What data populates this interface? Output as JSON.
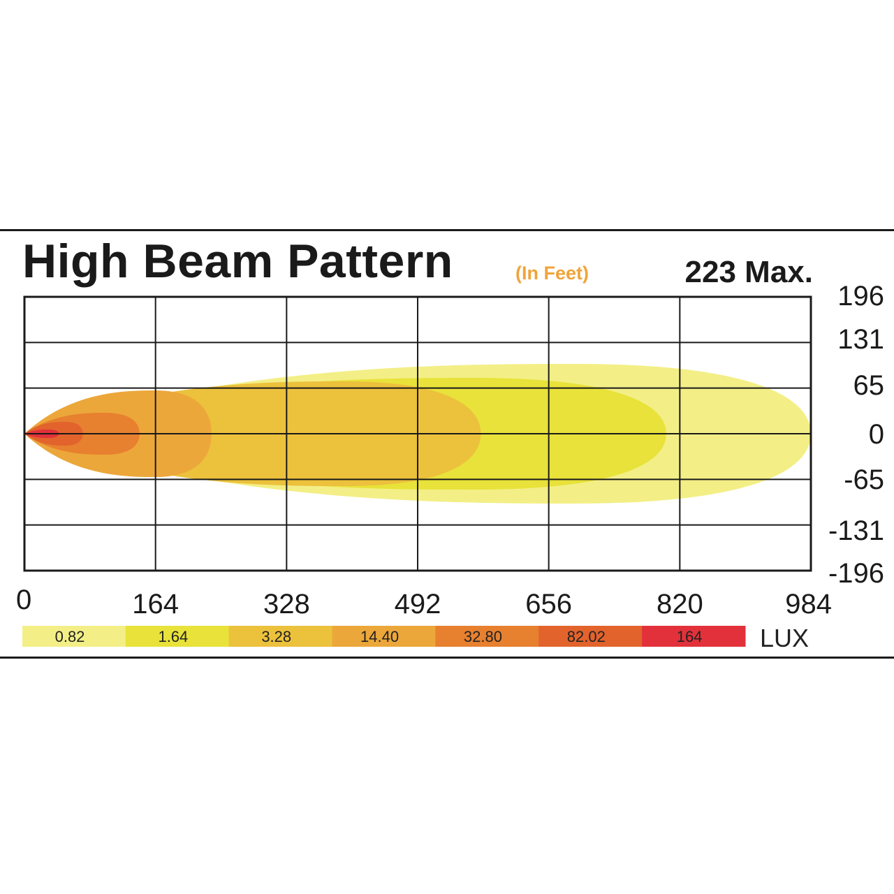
{
  "chart_data": {
    "type": "heatmap",
    "title": "High Beam Pattern",
    "subtitle": "(In Feet)",
    "max_label": "223 Max.",
    "x_ticks": [
      "0",
      "164",
      "328",
      "492",
      "656",
      "820",
      "984"
    ],
    "y_ticks": [
      "196",
      "131",
      "65",
      "0",
      "-65",
      "-131",
      "-196"
    ],
    "xlim": [
      0,
      984
    ],
    "ylim": [
      -196,
      196
    ],
    "grid": true,
    "legend_unit": "LUX",
    "legend": [
      {
        "label": "0.82",
        "color": "#f3ef86"
      },
      {
        "label": "1.64",
        "color": "#e8e23a"
      },
      {
        "label": "3.28",
        "color": "#ecc13c"
      },
      {
        "label": "14.40",
        "color": "#eca73a"
      },
      {
        "label": "32.80",
        "color": "#e7802f"
      },
      {
        "label": "82.02",
        "color": "#e2632c"
      },
      {
        "label": "164",
        "color": "#e2313a"
      }
    ],
    "zones": [
      {
        "lux": "0.82",
        "reach": 984,
        "half_width": 100,
        "color": "#f3ef86"
      },
      {
        "lux": "1.64",
        "reach": 803,
        "half_width": 80,
        "color": "#e8e23a"
      },
      {
        "lux": "3.28",
        "reach": 571,
        "half_width": 75,
        "color": "#ecc13c"
      },
      {
        "lux": "14.40",
        "reach": 234,
        "half_width": 62,
        "color": "#eca73a"
      },
      {
        "lux": "32.80",
        "reach": 144,
        "half_width": 30,
        "color": "#e7802f"
      },
      {
        "lux": "82.02",
        "reach": 73,
        "half_width": 17,
        "color": "#e2632c"
      },
      {
        "lux": "164",
        "reach": 43,
        "half_width": 6,
        "color": "#e2313a"
      }
    ]
  }
}
